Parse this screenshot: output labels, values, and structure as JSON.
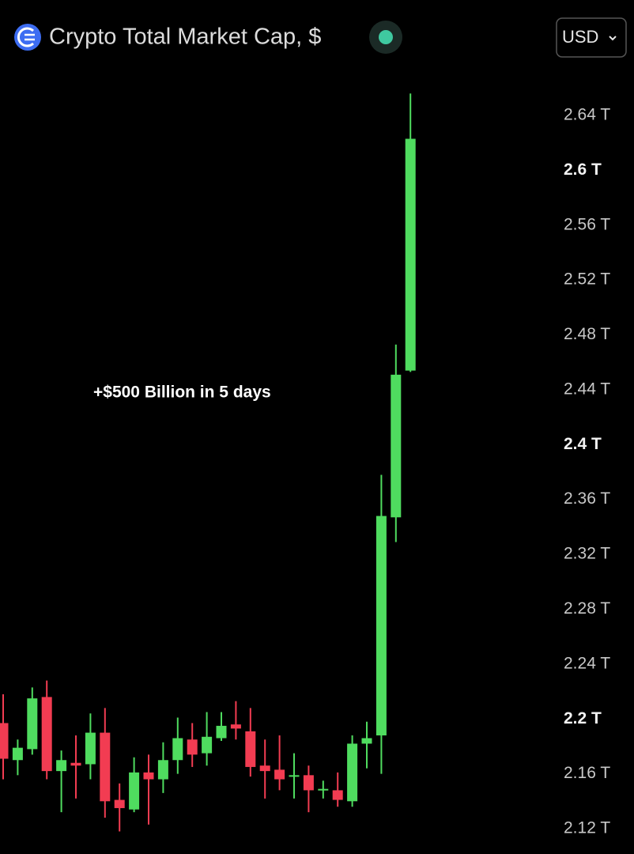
{
  "header": {
    "title": "Crypto Total Market Cap, $",
    "currency": "USD"
  },
  "chart_data": {
    "type": "candlestick",
    "annotation": "+$500 Billion in 5 days",
    "up_color": "#4fdc5f",
    "down_color": "#f23c52",
    "ylim": [
      2.105,
      2.67
    ],
    "yticks": [
      {
        "value": 2.64,
        "label": "2.64 T"
      },
      {
        "value": 2.6,
        "label": "2.6 T"
      },
      {
        "value": 2.56,
        "label": "2.56 T"
      },
      {
        "value": 2.52,
        "label": "2.52 T"
      },
      {
        "value": 2.48,
        "label": "2.48 T"
      },
      {
        "value": 2.44,
        "label": "2.44 T"
      },
      {
        "value": 2.4,
        "label": "2.4 T"
      },
      {
        "value": 2.36,
        "label": "2.36 T"
      },
      {
        "value": 2.32,
        "label": "2.32 T"
      },
      {
        "value": 2.28,
        "label": "2.28 T"
      },
      {
        "value": 2.24,
        "label": "2.24 T"
      },
      {
        "value": 2.2,
        "label": "2.2 T"
      },
      {
        "value": 2.16,
        "label": "2.16 T"
      },
      {
        "value": 2.12,
        "label": "2.12 T"
      }
    ],
    "open": [
      2.197,
      2.17,
      2.178,
      2.216,
      2.162,
      2.168,
      2.167,
      2.19,
      2.141,
      2.134,
      2.161,
      2.156,
      2.17,
      2.185,
      2.175,
      2.186,
      2.196,
      2.191,
      2.166,
      2.163,
      2.158,
      2.159,
      2.148,
      2.148,
      2.14,
      2.182,
      2.188,
      2.347,
      2.454
    ],
    "high": [
      2.218,
      2.185,
      2.223,
      2.228,
      2.177,
      2.188,
      2.204,
      2.208,
      2.153,
      2.172,
      2.174,
      2.183,
      2.201,
      2.197,
      2.205,
      2.205,
      2.213,
      2.208,
      2.185,
      2.188,
      2.175,
      2.166,
      2.155,
      2.161,
      2.188,
      2.198,
      2.378,
      2.473,
      2.656
    ],
    "low": [
      2.156,
      2.159,
      2.174,
      2.156,
      2.132,
      2.142,
      2.156,
      2.128,
      2.118,
      2.132,
      2.123,
      2.146,
      2.16,
      2.165,
      2.166,
      2.184,
      2.185,
      2.158,
      2.142,
      2.148,
      2.142,
      2.132,
      2.142,
      2.136,
      2.136,
      2.164,
      2.16,
      2.329,
      2.453
    ],
    "close": [
      2.171,
      2.179,
      2.215,
      2.162,
      2.17,
      2.166,
      2.19,
      2.14,
      2.135,
      2.161,
      2.156,
      2.17,
      2.186,
      2.174,
      2.187,
      2.195,
      2.193,
      2.165,
      2.162,
      2.156,
      2.159,
      2.148,
      2.149,
      2.141,
      2.182,
      2.186,
      2.348,
      2.451,
      2.623
    ]
  }
}
